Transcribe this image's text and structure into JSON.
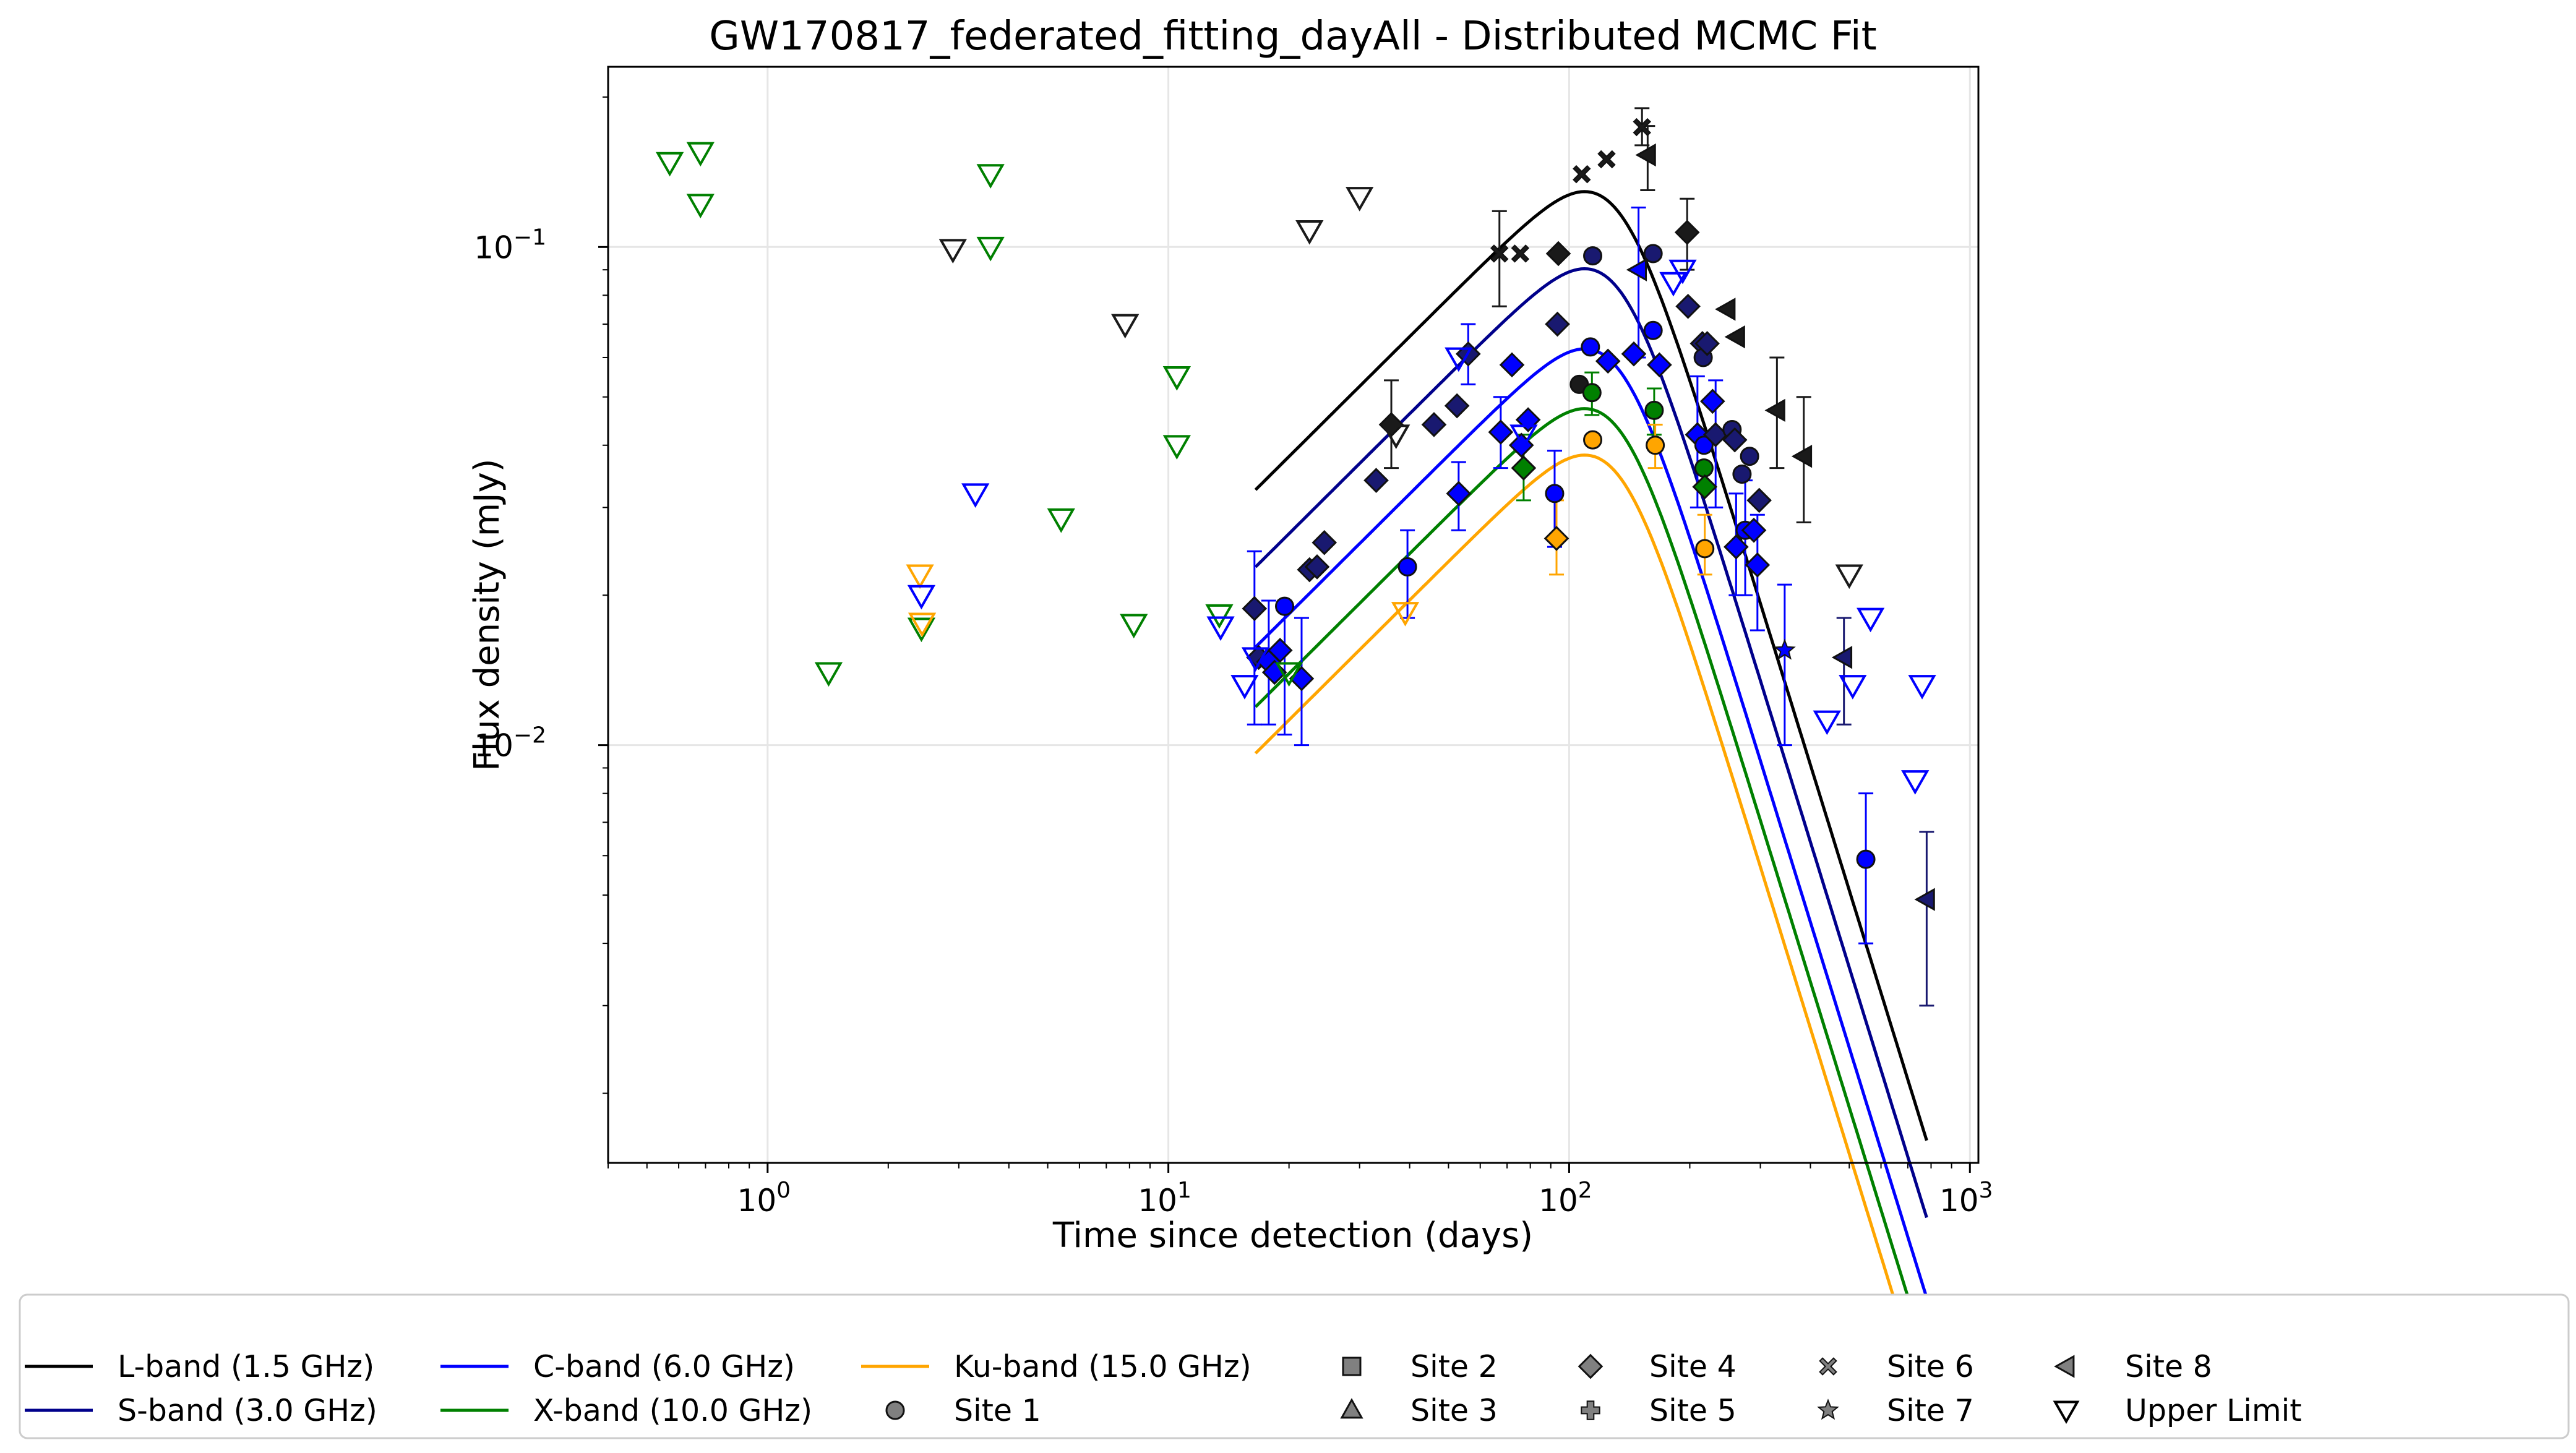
{
  "chart_data": {
    "type": "scatter",
    "title": "GW170817_federated_fitting_dayAll - Distributed MCMC Fit",
    "xlabel": "Time since detection (days)",
    "ylabel": "Flux density (mJy)",
    "xscale": "log",
    "yscale": "log",
    "xlim": [
      0.4,
      1050
    ],
    "ylim": [
      0.00145,
      0.23
    ],
    "grid": true,
    "legend_position": "bottom",
    "x_ticks": [
      {
        "value": 1,
        "base": "10",
        "exp": "0"
      },
      {
        "value": 10,
        "base": "10",
        "exp": "1"
      },
      {
        "value": 100,
        "base": "10",
        "exp": "2"
      },
      {
        "value": 1000,
        "base": "10",
        "exp": "3"
      }
    ],
    "y_ticks": [
      {
        "value": 0.01,
        "base": "10",
        "exp": "−2"
      },
      {
        "value": 0.1,
        "base": "10",
        "exp": "−1"
      }
    ],
    "model_peak": {
      "t_peak": 130,
      "alpha_rise": 0.8,
      "alpha_decay": -2.6,
      "smoothness": 2.0,
      "t_start": 16.5,
      "t_end": 780
    },
    "models": [
      {
        "name": "L-band (1.5 GHz)",
        "color": "#000000",
        "peak_flux": 0.12
      },
      {
        "name": "S-band (3.0 GHz)",
        "color": "#00008b",
        "peak_flux": 0.084
      },
      {
        "name": "C-band (6.0 GHz)",
        "color": "#0000ff",
        "peak_flux": 0.058
      },
      {
        "name": "X-band (10.0 GHz)",
        "color": "#008000",
        "peak_flux": 0.044
      },
      {
        "name": "Ku-band (15.0 GHz)",
        "color": "#ffa500",
        "peak_flux": 0.0355
      }
    ],
    "band_colors": {
      "L": "#1a1a1a",
      "S": "#191970",
      "C": "#0000ff",
      "X": "#008000",
      "Ku": "#ffa500"
    },
    "detections": [
      {
        "t": 16.4,
        "y": 0.0188,
        "band": "S",
        "marker": "diamond"
      },
      {
        "t": 16.8,
        "y": 0.015,
        "band": "S",
        "marker": "diamond"
      },
      {
        "t": 17.8,
        "y": 0.0147,
        "band": "C",
        "marker": "diamond"
      },
      {
        "t": 18.4,
        "y": 0.014,
        "band": "C",
        "marker": "diamond"
      },
      {
        "t": 19.0,
        "y": 0.0155,
        "band": "C",
        "marker": "diamond"
      },
      {
        "t": 19.5,
        "y": 0.019,
        "band": "C",
        "marker": "circle"
      },
      {
        "t": 21.5,
        "y": 0.0136,
        "band": "C",
        "marker": "diamond"
      },
      {
        "t": 22.5,
        "y": 0.0225,
        "band": "S",
        "marker": "diamond"
      },
      {
        "t": 23.5,
        "y": 0.0228,
        "band": "S",
        "marker": "diamond"
      },
      {
        "t": 24.5,
        "y": 0.0255,
        "band": "S",
        "marker": "diamond"
      },
      {
        "t": 33.0,
        "y": 0.034,
        "band": "S",
        "marker": "diamond"
      },
      {
        "t": 36.0,
        "y": 0.044,
        "band": "L",
        "marker": "diamond"
      },
      {
        "t": 39.5,
        "y": 0.0228,
        "band": "C",
        "marker": "circle"
      },
      {
        "t": 46.0,
        "y": 0.044,
        "band": "S",
        "marker": "diamond"
      },
      {
        "t": 52.5,
        "y": 0.048,
        "band": "S",
        "marker": "diamond"
      },
      {
        "t": 53.0,
        "y": 0.032,
        "band": "C",
        "marker": "diamond"
      },
      {
        "t": 56.0,
        "y": 0.061,
        "band": "S",
        "marker": "diamond"
      },
      {
        "t": 67.0,
        "y": 0.097,
        "band": "L",
        "marker": "x"
      },
      {
        "t": 67.5,
        "y": 0.0425,
        "band": "C",
        "marker": "diamond"
      },
      {
        "t": 72.0,
        "y": 0.058,
        "band": "C",
        "marker": "diamond"
      },
      {
        "t": 75.5,
        "y": 0.097,
        "band": "L",
        "marker": "x"
      },
      {
        "t": 76.0,
        "y": 0.04,
        "band": "C",
        "marker": "diamond"
      },
      {
        "t": 77.0,
        "y": 0.036,
        "band": "X",
        "marker": "diamond"
      },
      {
        "t": 79.0,
        "y": 0.045,
        "band": "C",
        "marker": "diamond"
      },
      {
        "t": 92.0,
        "y": 0.032,
        "band": "C",
        "marker": "circle"
      },
      {
        "t": 93.0,
        "y": 0.026,
        "band": "Ku",
        "marker": "diamond"
      },
      {
        "t": 93.5,
        "y": 0.07,
        "band": "S",
        "marker": "diamond"
      },
      {
        "t": 94.0,
        "y": 0.097,
        "band": "L",
        "marker": "diamond"
      },
      {
        "t": 106.0,
        "y": 0.053,
        "band": "L",
        "marker": "circle"
      },
      {
        "t": 107.5,
        "y": 0.14,
        "band": "L",
        "marker": "x"
      },
      {
        "t": 113.0,
        "y": 0.063,
        "band": "C",
        "marker": "circle"
      },
      {
        "t": 114.0,
        "y": 0.051,
        "band": "X",
        "marker": "circle"
      },
      {
        "t": 114.5,
        "y": 0.041,
        "band": "Ku",
        "marker": "circle"
      },
      {
        "t": 114.5,
        "y": 0.096,
        "band": "S",
        "marker": "circle"
      },
      {
        "t": 124.0,
        "y": 0.15,
        "band": "L",
        "marker": "x"
      },
      {
        "t": 125.0,
        "y": 0.059,
        "band": "C",
        "marker": "diamond"
      },
      {
        "t": 145.0,
        "y": 0.061,
        "band": "C",
        "marker": "diamond"
      },
      {
        "t": 149.0,
        "y": 0.09,
        "band": "C",
        "marker": "triangle-left"
      },
      {
        "t": 152.0,
        "y": 0.174,
        "band": "L",
        "marker": "x"
      },
      {
        "t": 157.0,
        "y": 0.153,
        "band": "L",
        "marker": "triangle-left"
      },
      {
        "t": 162.0,
        "y": 0.097,
        "band": "S",
        "marker": "circle"
      },
      {
        "t": 162.0,
        "y": 0.068,
        "band": "C",
        "marker": "circle"
      },
      {
        "t": 163.0,
        "y": 0.047,
        "band": "X",
        "marker": "circle"
      },
      {
        "t": 164.0,
        "y": 0.04,
        "band": "Ku",
        "marker": "circle"
      },
      {
        "t": 168.0,
        "y": 0.058,
        "band": "C",
        "marker": "diamond"
      },
      {
        "t": 197.0,
        "y": 0.107,
        "band": "L",
        "marker": "diamond"
      },
      {
        "t": 198.0,
        "y": 0.076,
        "band": "S",
        "marker": "diamond"
      },
      {
        "t": 209.0,
        "y": 0.042,
        "band": "C",
        "marker": "diamond"
      },
      {
        "t": 215.0,
        "y": 0.064,
        "band": "S",
        "marker": "diamond"
      },
      {
        "t": 216.0,
        "y": 0.06,
        "band": "S",
        "marker": "circle"
      },
      {
        "t": 217.0,
        "y": 0.04,
        "band": "C",
        "marker": "circle"
      },
      {
        "t": 217.0,
        "y": 0.036,
        "band": "X",
        "marker": "circle"
      },
      {
        "t": 218.0,
        "y": 0.033,
        "band": "X",
        "marker": "diamond"
      },
      {
        "t": 218.0,
        "y": 0.0248,
        "band": "Ku",
        "marker": "circle"
      },
      {
        "t": 221.0,
        "y": 0.064,
        "band": "S",
        "marker": "diamond"
      },
      {
        "t": 228.0,
        "y": 0.049,
        "band": "C",
        "marker": "diamond"
      },
      {
        "t": 232.0,
        "y": 0.042,
        "band": "S",
        "marker": "diamond"
      },
      {
        "t": 248.0,
        "y": 0.075,
        "band": "L",
        "marker": "triangle-left"
      },
      {
        "t": 255.0,
        "y": 0.043,
        "band": "S",
        "marker": "circle"
      },
      {
        "t": 259.0,
        "y": 0.041,
        "band": "S",
        "marker": "diamond"
      },
      {
        "t": 261.0,
        "y": 0.025,
        "band": "C",
        "marker": "diamond"
      },
      {
        "t": 262.0,
        "y": 0.066,
        "band": "L",
        "marker": "triangle-left"
      },
      {
        "t": 270.0,
        "y": 0.035,
        "band": "S",
        "marker": "circle"
      },
      {
        "t": 275.0,
        "y": 0.027,
        "band": "C",
        "marker": "circle"
      },
      {
        "t": 282.0,
        "y": 0.038,
        "band": "S",
        "marker": "circle"
      },
      {
        "t": 289.0,
        "y": 0.027,
        "band": "C",
        "marker": "diamond"
      },
      {
        "t": 295.0,
        "y": 0.023,
        "band": "C",
        "marker": "diamond"
      },
      {
        "t": 298.0,
        "y": 0.031,
        "band": "S",
        "marker": "diamond"
      },
      {
        "t": 330.0,
        "y": 0.047,
        "band": "L",
        "marker": "triangle-left"
      },
      {
        "t": 345.0,
        "y": 0.0155,
        "band": "C",
        "marker": "star"
      },
      {
        "t": 385.0,
        "y": 0.038,
        "band": "L",
        "marker": "triangle-left"
      },
      {
        "t": 485.0,
        "y": 0.015,
        "band": "S",
        "marker": "triangle-left"
      },
      {
        "t": 550.0,
        "y": 0.0059,
        "band": "C",
        "marker": "circle"
      },
      {
        "t": 780.0,
        "y": 0.0049,
        "band": "S",
        "marker": "triangle-left"
      }
    ],
    "error_bars": [
      {
        "t": 16.4,
        "lo": 0.011,
        "hi": 0.0245,
        "band": "C"
      },
      {
        "t": 17.8,
        "lo": 0.011,
        "hi": 0.0195,
        "band": "C"
      },
      {
        "t": 19.5,
        "lo": 0.0105,
        "hi": 0.0195,
        "band": "C"
      },
      {
        "t": 21.5,
        "lo": 0.01,
        "hi": 0.018,
        "band": "C"
      },
      {
        "t": 36.0,
        "lo": 0.036,
        "hi": 0.054,
        "band": "L"
      },
      {
        "t": 39.5,
        "lo": 0.018,
        "hi": 0.027,
        "band": "C"
      },
      {
        "t": 53.0,
        "lo": 0.027,
        "hi": 0.037,
        "band": "C"
      },
      {
        "t": 56.0,
        "lo": 0.053,
        "hi": 0.07,
        "band": "C"
      },
      {
        "t": 67.0,
        "lo": 0.076,
        "hi": 0.118,
        "band": "L"
      },
      {
        "t": 67.5,
        "lo": 0.036,
        "hi": 0.05,
        "band": "C"
      },
      {
        "t": 77.0,
        "lo": 0.031,
        "hi": 0.042,
        "band": "X"
      },
      {
        "t": 92.0,
        "lo": 0.025,
        "hi": 0.039,
        "band": "C"
      },
      {
        "t": 93.0,
        "lo": 0.022,
        "hi": 0.031,
        "band": "Ku"
      },
      {
        "t": 114.0,
        "lo": 0.046,
        "hi": 0.056,
        "band": "X"
      },
      {
        "t": 149.0,
        "lo": 0.06,
        "hi": 0.12,
        "band": "C"
      },
      {
        "t": 152.0,
        "lo": 0.16,
        "hi": 0.19,
        "band": "L"
      },
      {
        "t": 157.0,
        "lo": 0.13,
        "hi": 0.175,
        "band": "L"
      },
      {
        "t": 163.0,
        "lo": 0.042,
        "hi": 0.052,
        "band": "X"
      },
      {
        "t": 164.0,
        "lo": 0.036,
        "hi": 0.044,
        "band": "Ku"
      },
      {
        "t": 197.0,
        "lo": 0.09,
        "hi": 0.125,
        "band": "L"
      },
      {
        "t": 209.0,
        "lo": 0.03,
        "hi": 0.055,
        "band": "C"
      },
      {
        "t": 218.0,
        "lo": 0.022,
        "hi": 0.029,
        "band": "Ku"
      },
      {
        "t": 232.0,
        "lo": 0.03,
        "hi": 0.054,
        "band": "C"
      },
      {
        "t": 261.0,
        "lo": 0.02,
        "hi": 0.032,
        "band": "C"
      },
      {
        "t": 275.0,
        "lo": 0.02,
        "hi": 0.034,
        "band": "C"
      },
      {
        "t": 295.0,
        "lo": 0.017,
        "hi": 0.029,
        "band": "C"
      },
      {
        "t": 330.0,
        "lo": 0.036,
        "hi": 0.06,
        "band": "L"
      },
      {
        "t": 345.0,
        "lo": 0.01,
        "hi": 0.021,
        "band": "C"
      },
      {
        "t": 385.0,
        "lo": 0.028,
        "hi": 0.05,
        "band": "L"
      },
      {
        "t": 485.0,
        "lo": 0.011,
        "hi": 0.018,
        "band": "S"
      },
      {
        "t": 550.0,
        "lo": 0.004,
        "hi": 0.008,
        "band": "C"
      },
      {
        "t": 780.0,
        "lo": 0.003,
        "hi": 0.0067,
        "band": "S"
      }
    ],
    "upper_limits": [
      {
        "t": 0.57,
        "y": 0.148,
        "band": "X"
      },
      {
        "t": 0.68,
        "y": 0.155,
        "band": "X"
      },
      {
        "t": 0.68,
        "y": 0.122,
        "band": "X"
      },
      {
        "t": 1.42,
        "y": 0.014,
        "band": "X"
      },
      {
        "t": 2.4,
        "y": 0.022,
        "band": "Ku"
      },
      {
        "t": 2.42,
        "y": 0.02,
        "band": "C"
      },
      {
        "t": 2.42,
        "y": 0.0172,
        "band": "X"
      },
      {
        "t": 2.43,
        "y": 0.0176,
        "band": "Ku"
      },
      {
        "t": 2.9,
        "y": 0.099,
        "band": "L"
      },
      {
        "t": 3.3,
        "y": 0.032,
        "band": "C"
      },
      {
        "t": 3.6,
        "y": 0.14,
        "band": "X"
      },
      {
        "t": 3.6,
        "y": 0.1,
        "band": "X"
      },
      {
        "t": 5.4,
        "y": 0.0285,
        "band": "X"
      },
      {
        "t": 7.8,
        "y": 0.07,
        "band": "L"
      },
      {
        "t": 8.2,
        "y": 0.0175,
        "band": "X"
      },
      {
        "t": 10.5,
        "y": 0.055,
        "band": "X"
      },
      {
        "t": 10.5,
        "y": 0.04,
        "band": "X"
      },
      {
        "t": 13.4,
        "y": 0.0183,
        "band": "X"
      },
      {
        "t": 13.5,
        "y": 0.0173,
        "band": "C"
      },
      {
        "t": 15.5,
        "y": 0.0132,
        "band": "C"
      },
      {
        "t": 16.5,
        "y": 0.015,
        "band": "C"
      },
      {
        "t": 20.0,
        "y": 0.014,
        "band": "X"
      },
      {
        "t": 22.5,
        "y": 0.108,
        "band": "L"
      },
      {
        "t": 30.0,
        "y": 0.126,
        "band": "L"
      },
      {
        "t": 37.0,
        "y": 0.042,
        "band": "L"
      },
      {
        "t": 39.0,
        "y": 0.0185,
        "band": "Ku"
      },
      {
        "t": 53.0,
        "y": 0.06,
        "band": "C"
      },
      {
        "t": 77.0,
        "y": 0.042,
        "band": "C"
      },
      {
        "t": 182.0,
        "y": 0.085,
        "band": "C"
      },
      {
        "t": 192.0,
        "y": 0.09,
        "band": "C"
      },
      {
        "t": 500.0,
        "y": 0.022,
        "band": "L"
      },
      {
        "t": 440.0,
        "y": 0.0112,
        "band": "C"
      },
      {
        "t": 510.0,
        "y": 0.0132,
        "band": "C"
      },
      {
        "t": 565.0,
        "y": 0.018,
        "band": "C"
      },
      {
        "t": 730.0,
        "y": 0.0085,
        "band": "C"
      },
      {
        "t": 760.0,
        "y": 0.0132,
        "band": "C"
      }
    ],
    "legend": [
      {
        "label": "L-band (1.5 GHz)",
        "symbol": "line",
        "color": "#000000"
      },
      {
        "label": "S-band (3.0 GHz)",
        "symbol": "line",
        "color": "#00008b"
      },
      {
        "label": "C-band (6.0 GHz)",
        "symbol": "line",
        "color": "#0000ff"
      },
      {
        "label": "X-band (10.0 GHz)",
        "symbol": "line",
        "color": "#008000"
      },
      {
        "label": "Ku-band (15.0 GHz)",
        "symbol": "line",
        "color": "#ffa500"
      },
      {
        "label": "Site 1",
        "symbol": "circle",
        "color": "#808080"
      },
      {
        "label": "Site 2",
        "symbol": "square",
        "color": "#808080"
      },
      {
        "label": "Site 3",
        "symbol": "triangle-up",
        "color": "#808080"
      },
      {
        "label": "Site 4",
        "symbol": "diamond",
        "color": "#808080"
      },
      {
        "label": "Site 5",
        "symbol": "plus",
        "color": "#808080"
      },
      {
        "label": "Site 6",
        "symbol": "x",
        "color": "#808080"
      },
      {
        "label": "Site 7",
        "symbol": "star",
        "color": "#808080"
      },
      {
        "label": "Site 8",
        "symbol": "triangle-left",
        "color": "#808080"
      },
      {
        "label": "Upper Limit",
        "symbol": "triangle-down-open",
        "color": "#000000"
      }
    ]
  }
}
